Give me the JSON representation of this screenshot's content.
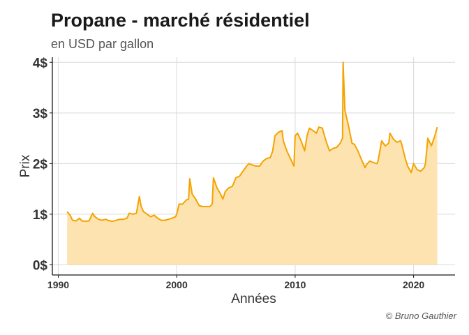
{
  "title": "Propane - marché résidentiel",
  "subtitle": "en USD par gallon",
  "caption": "© Bruno Gauthier",
  "colors": {
    "line": "#F5A300",
    "area": "#FDE3B0",
    "grid": "#D9D9D9",
    "axis": "#1a1a1a"
  },
  "chart_data": {
    "type": "area",
    "title": "Propane - marché résidentiel",
    "subtitle": "en USD par gallon",
    "xlabel": "Années",
    "ylabel": "Prix",
    "xlim": [
      1989.5,
      2023.5
    ],
    "ylim": [
      -0.2,
      4.1
    ],
    "x_ticks": [
      1990,
      2000,
      2010,
      2020
    ],
    "x_tick_labels": [
      "1990",
      "2000",
      "2010",
      "2020"
    ],
    "y_ticks": [
      0,
      1,
      2,
      3,
      4
    ],
    "y_tick_labels": [
      "0$",
      "1$",
      "2$",
      "3$",
      "4$"
    ],
    "grid": true,
    "legend": "none",
    "series": [
      {
        "x": [
          1990.75,
          1991.0,
          1991.2,
          1991.5,
          1991.8,
          1992.0,
          1992.3,
          1992.6,
          1992.9,
          1993.0,
          1993.1,
          1993.4,
          1993.7,
          1994.0,
          1994.3,
          1994.6,
          1994.9,
          1995.2,
          1995.5,
          1995.8,
          1996.0,
          1996.3,
          1996.6,
          1996.85,
          1997.0,
          1997.2,
          1997.5,
          1997.8,
          1998.1,
          1998.4,
          1998.7,
          1999.0,
          1999.3,
          1999.6,
          1999.9,
          2000.0,
          2000.2,
          2000.5,
          2000.8,
          2001.0,
          2001.1,
          2001.3,
          2001.6,
          2001.9,
          2002.2,
          2002.5,
          2002.8,
          2003.0,
          2003.1,
          2003.4,
          2003.7,
          2003.9,
          2004.1,
          2004.4,
          2004.7,
          2005.0,
          2005.3,
          2005.6,
          2005.9,
          2006.1,
          2006.4,
          2006.7,
          2007.0,
          2007.3,
          2007.6,
          2007.9,
          2008.1,
          2008.3,
          2008.6,
          2008.9,
          2009.0,
          2009.3,
          2009.6,
          2009.9,
          2010.0,
          2010.2,
          2010.5,
          2010.8,
          2011.0,
          2011.2,
          2011.5,
          2011.8,
          2012.0,
          2012.3,
          2012.6,
          2012.9,
          2013.2,
          2013.5,
          2013.8,
          2014.0,
          2014.05,
          2014.2,
          2014.5,
          2014.8,
          2015.0,
          2015.3,
          2015.6,
          2015.9,
          2016.0,
          2016.3,
          2016.6,
          2016.9,
          2017.0,
          2017.3,
          2017.6,
          2017.9,
          2018.0,
          2018.3,
          2018.6,
          2018.9,
          2019.0,
          2019.3,
          2019.5,
          2019.8,
          2020.0,
          2020.3,
          2020.6,
          2020.9,
          2021.0,
          2021.2,
          2021.5,
          2021.8,
          2022.0
        ],
        "values": [
          1.05,
          0.98,
          0.88,
          0.87,
          0.92,
          0.87,
          0.86,
          0.87,
          1.02,
          0.98,
          0.95,
          0.9,
          0.88,
          0.9,
          0.87,
          0.86,
          0.88,
          0.9,
          0.9,
          0.92,
          1.02,
          1.0,
          1.02,
          1.35,
          1.15,
          1.05,
          1.0,
          0.95,
          0.98,
          0.92,
          0.88,
          0.88,
          0.9,
          0.92,
          0.95,
          1.0,
          1.2,
          1.2,
          1.28,
          1.3,
          1.7,
          1.4,
          1.3,
          1.17,
          1.15,
          1.15,
          1.15,
          1.2,
          1.72,
          1.52,
          1.4,
          1.3,
          1.45,
          1.52,
          1.55,
          1.72,
          1.75,
          1.85,
          1.95,
          2.0,
          1.97,
          1.95,
          1.95,
          2.05,
          2.1,
          2.12,
          2.25,
          2.55,
          2.62,
          2.65,
          2.45,
          2.25,
          2.1,
          1.95,
          2.55,
          2.6,
          2.45,
          2.25,
          2.55,
          2.7,
          2.65,
          2.6,
          2.72,
          2.7,
          2.45,
          2.25,
          2.3,
          2.32,
          2.4,
          2.5,
          4.0,
          3.05,
          2.75,
          2.4,
          2.38,
          2.25,
          2.08,
          1.92,
          1.97,
          2.05,
          2.02,
          2.0,
          2.05,
          2.45,
          2.35,
          2.4,
          2.6,
          2.48,
          2.42,
          2.45,
          2.38,
          2.1,
          1.95,
          1.82,
          2.0,
          1.88,
          1.85,
          1.92,
          2.0,
          2.5,
          2.35,
          2.55,
          2.72
        ]
      }
    ]
  }
}
